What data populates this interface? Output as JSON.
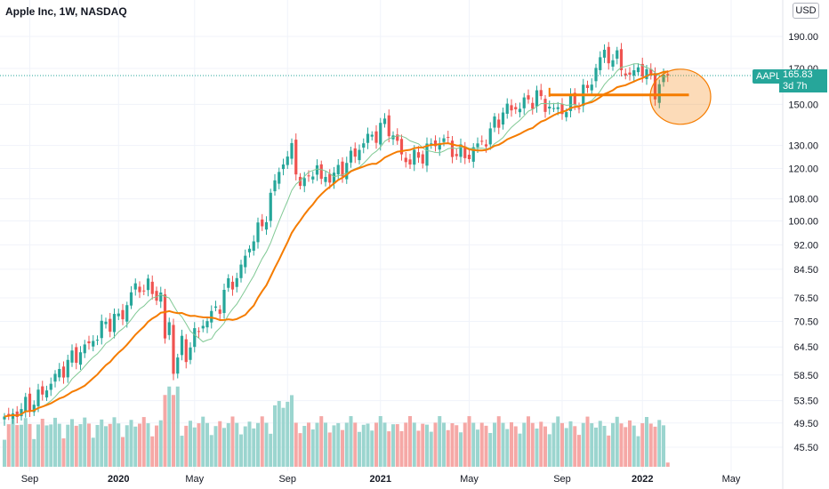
{
  "header": {
    "title": "Apple Inc, 1W, NASDAQ",
    "currency": "USD"
  },
  "price_tag": {
    "symbol": "AAPL",
    "price": "165.83",
    "countdown": "3d 7h"
  },
  "colors": {
    "up": "#26a69a",
    "down": "#ef5350",
    "ma_fast": "#81c995",
    "ma_slow": "#f57c00",
    "vol_up": "#9bd5cf",
    "vol_down": "#f5a8a6",
    "annotation": "#f57c00"
  },
  "chart_data": {
    "type": "candlestick",
    "title": "Apple Inc, 1W, NASDAQ",
    "y_scale": "log",
    "y_ticks": [
      "190.00",
      "170.00",
      "150.00",
      "130.00",
      "120.00",
      "108.00",
      "100.00",
      "92.00",
      "84.50",
      "76.50",
      "70.50",
      "64.50",
      "58.50",
      "53.50",
      "49.50",
      "45.50"
    ],
    "x_ticks": [
      "Sep",
      "2020",
      "May",
      "Sep",
      "2021",
      "May",
      "Sep",
      "2022",
      "May"
    ],
    "last_price": 165.83,
    "support_level": 155,
    "close_anchors": [
      [
        0,
        50
      ],
      [
        4,
        52
      ],
      [
        8,
        54
      ],
      [
        12,
        58
      ],
      [
        16,
        62
      ],
      [
        20,
        65
      ],
      [
        24,
        70
      ],
      [
        28,
        72
      ],
      [
        30,
        78
      ],
      [
        33,
        80
      ],
      [
        35,
        78
      ],
      [
        37,
        77
      ],
      [
        38,
        66
      ],
      [
        39,
        70
      ],
      [
        40,
        60
      ],
      [
        41,
        62
      ],
      [
        42,
        65
      ],
      [
        43,
        63
      ],
      [
        45,
        67
      ],
      [
        47,
        70
      ],
      [
        49,
        72
      ],
      [
        51,
        75
      ],
      [
        53,
        80
      ],
      [
        55,
        82
      ],
      [
        57,
        88
      ],
      [
        59,
        95
      ],
      [
        61,
        98
      ],
      [
        63,
        108
      ],
      [
        65,
        120
      ],
      [
        67,
        125
      ],
      [
        68,
        128
      ],
      [
        69,
        120
      ],
      [
        70,
        115
      ],
      [
        71,
        112
      ],
      [
        72,
        118
      ],
      [
        74,
        120
      ],
      [
        75,
        115
      ],
      [
        77,
        117
      ],
      [
        79,
        118
      ],
      [
        81,
        123
      ],
      [
        83,
        126
      ],
      [
        85,
        132
      ],
      [
        87,
        134
      ],
      [
        89,
        138
      ],
      [
        90,
        140
      ],
      [
        91,
        138
      ],
      [
        93,
        131
      ],
      [
        94,
        125
      ],
      [
        95,
        124
      ],
      [
        97,
        124
      ],
      [
        99,
        126
      ],
      [
        101,
        130
      ],
      [
        103,
        132
      ],
      [
        104,
        133
      ],
      [
        106,
        128
      ],
      [
        108,
        126
      ],
      [
        110,
        126
      ],
      [
        112,
        130
      ],
      [
        114,
        133
      ],
      [
        116,
        140
      ],
      [
        118,
        146
      ],
      [
        120,
        148
      ],
      [
        122,
        149
      ],
      [
        124,
        152
      ],
      [
        126,
        154
      ],
      [
        128,
        150
      ],
      [
        130,
        147
      ],
      [
        132,
        147
      ],
      [
        134,
        150
      ],
      [
        136,
        152
      ],
      [
        137,
        157
      ],
      [
        138,
        158
      ],
      [
        139,
        162
      ],
      [
        140,
        172
      ],
      [
        141,
        176
      ],
      [
        143,
        178
      ],
      [
        145,
        175
      ],
      [
        147,
        168
      ],
      [
        148,
        165
      ],
      [
        150,
        170
      ],
      [
        151,
        170
      ],
      [
        152,
        167
      ],
      [
        153,
        162
      ],
      [
        154,
        158
      ],
      [
        156,
        163
      ],
      [
        157,
        166
      ]
    ],
    "ma_fast": {
      "period": 10
    },
    "ma_slow": {
      "period": 20
    },
    "volume_series": "relative volume bars colored by candle direction"
  }
}
